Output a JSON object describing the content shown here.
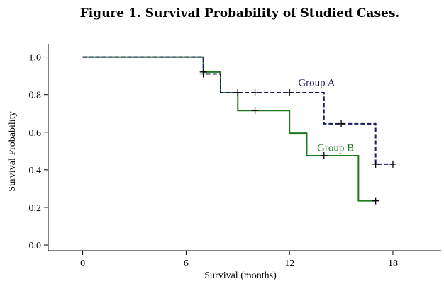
{
  "chart_data": {
    "type": "line",
    "title": "Figure 1. Survival Probability of Studied Cases.",
    "xlabel": "Survival (months)",
    "ylabel": "Survival Probability",
    "xlim": [
      -2,
      20.8
    ],
    "ylim": [
      -0.03,
      1.07
    ],
    "xticks": [
      0,
      6,
      12,
      18
    ],
    "yticks": [
      0.0,
      0.2,
      0.4,
      0.6,
      0.8,
      1.0
    ],
    "ytick_labels": [
      "0.0",
      "0.2",
      "0.4",
      "0.6",
      "0.8",
      "1.0"
    ],
    "grid": false,
    "step": true,
    "series": [
      {
        "name": "Group A",
        "color": "#1a1a5e",
        "dash": true,
        "x": [
          0,
          7,
          8,
          14,
          17,
          18
        ],
        "y": [
          1.0,
          0.91,
          0.81,
          0.645,
          0.43,
          0.43
        ],
        "censored_x": [
          7,
          9,
          10,
          12,
          15,
          17,
          18
        ],
        "censored_y": [
          0.91,
          0.81,
          0.81,
          0.81,
          0.645,
          0.43,
          0.43
        ]
      },
      {
        "name": "Group B",
        "color": "#1f7a1f",
        "dash": false,
        "x": [
          0,
          7,
          8,
          9,
          12,
          13,
          16,
          17
        ],
        "y": [
          1.0,
          0.92,
          0.81,
          0.715,
          0.595,
          0.475,
          0.235,
          0.235
        ],
        "censored_x": [
          7,
          9,
          10,
          14,
          17
        ],
        "censored_y": [
          0.92,
          0.81,
          0.715,
          0.475,
          0.235
        ]
      }
    ]
  }
}
